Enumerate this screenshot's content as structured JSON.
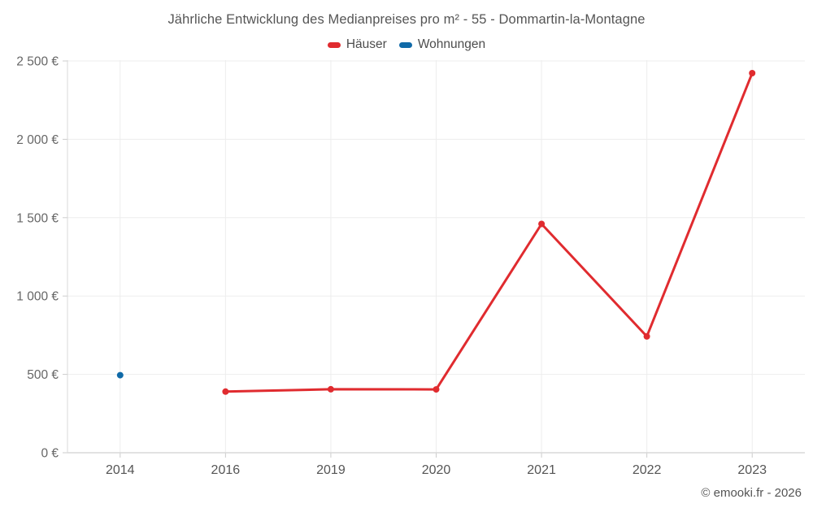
{
  "title": "Jährliche Entwicklung des Medianpreises pro m² - 55 - Dommartin-la-Montagne",
  "legend": [
    {
      "label": "Häuser",
      "color": "#e02b2f"
    },
    {
      "label": "Wohnungen",
      "color": "#106aa8"
    }
  ],
  "credits": "© emooki.fr - 2026",
  "colors": {
    "hauser_red": "#e02b2f",
    "wohnungen_blue": "#106aa8",
    "gridline": "#ededed",
    "axis_line": "#d8d8d8",
    "tick_mark": "#cccccc",
    "title_text": "#555555",
    "tick_text": "#666666"
  },
  "chart_data": {
    "type": "line",
    "title": "Jährliche Entwicklung des Medianpreises pro m² - 55 - Dommartin-la-Montagne",
    "categories": [
      "2014",
      "2016",
      "2019",
      "2020",
      "2021",
      "2022",
      "2023"
    ],
    "series": [
      {
        "name": "Häuser",
        "color": "#e02b2f",
        "values": [
          null,
          390,
          405,
          404,
          1460,
          742,
          2422
        ]
      },
      {
        "name": "Wohnungen",
        "color": "#106aa8",
        "values": [
          495,
          null,
          null,
          null,
          null,
          null,
          null
        ]
      }
    ],
    "xlabel": "",
    "ylabel": "",
    "ylim": [
      0,
      2500
    ],
    "yticks": [
      0,
      500,
      1000,
      1500,
      2000,
      2500
    ],
    "ytick_labels": [
      "0 €",
      "500 €",
      "1 000 €",
      "1 500 €",
      "2 000 €",
      "2 500 €"
    ],
    "grid": true,
    "legend_position": "top",
    "marker_radius": 4
  }
}
